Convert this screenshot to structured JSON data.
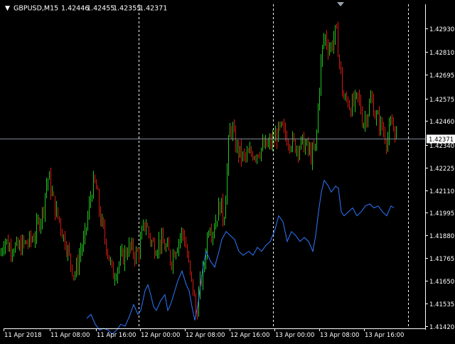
{
  "header": {
    "arrow": "▼",
    "symbol": "GBPUSD,M15",
    "open": "1.42446",
    "high": "1.42455",
    "low": "1.42355",
    "close": "1.42371"
  },
  "colors": {
    "background": "#000000",
    "bull_candle": "#22c41f",
    "bear_candle": "#d21a12",
    "indicator_line": "#2e78ff",
    "bid_line": "#7f8a97",
    "axis": "#ffffff",
    "separator": "#ffffff",
    "price_tag_bg": "#ffffff",
    "price_tag_text": "#000000"
  },
  "chart_data": {
    "type": "line",
    "symbol": "GBPUSD",
    "timeframe": "M15",
    "y_ticks": [
      "1.42930",
      "1.42810",
      "1.42695",
      "1.42575",
      "1.42460",
      "1.42340",
      "1.42225",
      "1.42110",
      "1.41995",
      "1.41880",
      "1.41765",
      "1.41650",
      "1.41535",
      "1.41420"
    ],
    "ylim": [
      1.4142,
      1.4293
    ],
    "x_ticks": [
      "11 Apr 2018",
      "11 Apr 08:00",
      "11 Apr 16:00",
      "12 Apr 00:00",
      "12 Apr 08:00",
      "12 Apr 16:00",
      "13 Apr 00:00",
      "13 Apr 08:00",
      "13 Apr 16:00"
    ],
    "day_separators": [
      "12 Apr 00:00",
      "13 Apr 00:00"
    ],
    "current_price": "1.42371",
    "current_price_value": 1.42371,
    "price_path": [
      [
        0,
        1.4178
      ],
      [
        6,
        1.4187
      ],
      [
        12,
        1.4182
      ],
      [
        18,
        1.4183
      ],
      [
        24,
        1.4181
      ],
      [
        30,
        1.4183
      ],
      [
        36,
        1.4184
      ],
      [
        42,
        1.4185
      ],
      [
        48,
        1.4188
      ],
      [
        54,
        1.4195
      ],
      [
        60,
        1.42
      ],
      [
        64,
        1.4213
      ],
      [
        68,
        1.4218
      ],
      [
        72,
        1.421
      ],
      [
        78,
        1.42
      ],
      [
        84,
        1.4195
      ],
      [
        88,
        1.4188
      ],
      [
        92,
        1.4185
      ],
      [
        96,
        1.4178
      ],
      [
        100,
        1.4173
      ],
      [
        104,
        1.4168
      ],
      [
        108,
        1.4172
      ],
      [
        112,
        1.418
      ],
      [
        118,
        1.4185
      ],
      [
        124,
        1.42
      ],
      [
        128,
        1.421
      ],
      [
        132,
        1.4215
      ],
      [
        136,
        1.421
      ],
      [
        140,
        1.4198
      ],
      [
        146,
        1.4188
      ],
      [
        150,
        1.4182
      ],
      [
        154,
        1.4175
      ],
      [
        158,
        1.4168
      ],
      [
        162,
        1.417
      ],
      [
        168,
        1.4175
      ],
      [
        174,
        1.4178
      ],
      [
        180,
        1.4182
      ],
      [
        186,
        1.418
      ],
      [
        192,
        1.4178
      ],
      [
        196,
        1.4182
      ],
      [
        200,
        1.419
      ],
      [
        204,
        1.4195
      ],
      [
        208,
        1.419
      ],
      [
        212,
        1.4185
      ],
      [
        218,
        1.4182
      ],
      [
        224,
        1.4185
      ],
      [
        230,
        1.4183
      ],
      [
        236,
        1.418
      ],
      [
        240,
        1.4175
      ],
      [
        244,
        1.418
      ],
      [
        250,
        1.4185
      ],
      [
        256,
        1.419
      ],
      [
        260,
        1.4185
      ],
      [
        264,
        1.4175
      ],
      [
        268,
        1.4165
      ],
      [
        272,
        1.416
      ],
      [
        274,
        1.415
      ],
      [
        276,
        1.4148
      ],
      [
        278,
        1.4155
      ],
      [
        282,
        1.4165
      ],
      [
        286,
        1.417
      ],
      [
        290,
        1.4185
      ],
      [
        294,
        1.4195
      ],
      [
        298,
        1.419
      ],
      [
        302,
        1.4195
      ],
      [
        306,
        1.42
      ],
      [
        310,
        1.4205
      ],
      [
        314,
        1.4195
      ],
      [
        318,
        1.4215
      ],
      [
        322,
        1.424
      ],
      [
        326,
        1.4243
      ],
      [
        330,
        1.4235
      ],
      [
        336,
        1.423
      ],
      [
        342,
        1.4227
      ],
      [
        348,
        1.4228
      ],
      [
        354,
        1.423
      ],
      [
        360,
        1.423
      ],
      [
        366,
        1.4232
      ],
      [
        372,
        1.4233
      ],
      [
        378,
        1.4234
      ],
      [
        384,
        1.4236
      ],
      [
        390,
        1.424
      ],
      [
        396,
        1.4242
      ],
      [
        402,
        1.4238
      ],
      [
        408,
        1.4236
      ],
      [
        414,
        1.4234
      ],
      [
        420,
        1.4233
      ],
      [
        426,
        1.4235
      ],
      [
        432,
        1.4232
      ],
      [
        438,
        1.4228
      ],
      [
        444,
        1.4233
      ],
      [
        448,
        1.426
      ],
      [
        452,
        1.428
      ],
      [
        456,
        1.429
      ],
      [
        460,
        1.4285
      ],
      [
        464,
        1.4283
      ],
      [
        468,
        1.4287
      ],
      [
        472,
        1.4292
      ],
      [
        476,
        1.428
      ],
      [
        480,
        1.4265
      ],
      [
        484,
        1.4255
      ],
      [
        488,
        1.4258
      ],
      [
        492,
        1.4253
      ],
      [
        498,
        1.4255
      ],
      [
        504,
        1.4258
      ],
      [
        510,
        1.4245
      ],
      [
        516,
        1.425
      ],
      [
        522,
        1.4258
      ],
      [
        528,
        1.4248
      ],
      [
        534,
        1.4245
      ],
      [
        540,
        1.424
      ],
      [
        544,
        1.4236
      ],
      [
        548,
        1.4242
      ],
      [
        552,
        1.4245
      ],
      [
        556,
        1.424
      ],
      [
        558,
        1.42371
      ]
    ],
    "indicator_path": [
      [
        122,
        1.4146
      ],
      [
        128,
        1.4148
      ],
      [
        134,
        1.4143
      ],
      [
        140,
        1.414
      ],
      [
        146,
        1.4141
      ],
      [
        152,
        1.414
      ],
      [
        158,
        1.4138
      ],
      [
        164,
        1.414
      ],
      [
        170,
        1.4143
      ],
      [
        176,
        1.4142
      ],
      [
        182,
        1.4147
      ],
      [
        188,
        1.4153
      ],
      [
        194,
        1.4148
      ],
      [
        198,
        1.415
      ],
      [
        204,
        1.416
      ],
      [
        208,
        1.4163
      ],
      [
        212,
        1.4158
      ],
      [
        216,
        1.4152
      ],
      [
        220,
        1.415
      ],
      [
        226,
        1.4155
      ],
      [
        232,
        1.4158
      ],
      [
        236,
        1.415
      ],
      [
        240,
        1.4153
      ],
      [
        246,
        1.416
      ],
      [
        250,
        1.4165
      ],
      [
        256,
        1.417
      ],
      [
        262,
        1.4163
      ],
      [
        266,
        1.416
      ],
      [
        270,
        1.4152
      ],
      [
        274,
        1.4145
      ],
      [
        278,
        1.4152
      ],
      [
        282,
        1.4163
      ],
      [
        286,
        1.4173
      ],
      [
        290,
        1.418
      ],
      [
        296,
        1.4175
      ],
      [
        302,
        1.4172
      ],
      [
        308,
        1.418
      ],
      [
        312,
        1.4186
      ],
      [
        318,
        1.419
      ],
      [
        324,
        1.4188
      ],
      [
        330,
        1.4186
      ],
      [
        336,
        1.418
      ],
      [
        342,
        1.4178
      ],
      [
        350,
        1.418
      ],
      [
        356,
        1.4178
      ],
      [
        362,
        1.4182
      ],
      [
        368,
        1.418
      ],
      [
        374,
        1.4183
      ],
      [
        380,
        1.4185
      ],
      [
        386,
        1.419
      ],
      [
        392,
        1.4198
      ],
      [
        398,
        1.4195
      ],
      [
        404,
        1.4185
      ],
      [
        410,
        1.419
      ],
      [
        416,
        1.4188
      ],
      [
        422,
        1.4185
      ],
      [
        428,
        1.4187
      ],
      [
        434,
        1.4185
      ],
      [
        440,
        1.418
      ],
      [
        444,
        1.4188
      ],
      [
        448,
        1.42
      ],
      [
        452,
        1.421
      ],
      [
        456,
        1.4216
      ],
      [
        462,
        1.4213
      ],
      [
        466,
        1.421
      ],
      [
        472,
        1.4213
      ],
      [
        476,
        1.4212
      ],
      [
        480,
        1.42
      ],
      [
        484,
        1.4198
      ],
      [
        490,
        1.42
      ],
      [
        496,
        1.4202
      ],
      [
        502,
        1.4198
      ],
      [
        508,
        1.42
      ],
      [
        514,
        1.4203
      ],
      [
        520,
        1.4204
      ],
      [
        526,
        1.4202
      ],
      [
        532,
        1.4203
      ],
      [
        538,
        1.42
      ],
      [
        544,
        1.4198
      ],
      [
        550,
        1.4203
      ],
      [
        554,
        1.4202
      ]
    ]
  }
}
